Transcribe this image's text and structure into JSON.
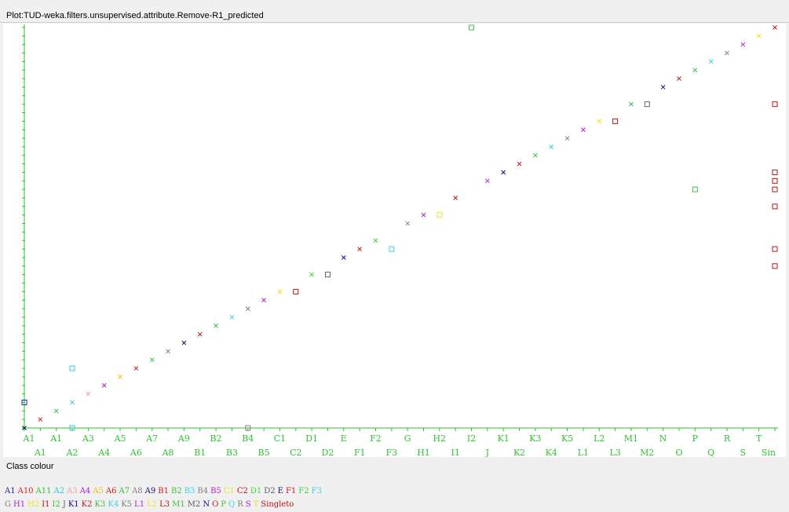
{
  "window": {
    "title": "Plot:TUD-weka.filters.unsupervised.attribute.Remove-R1_predicted"
  },
  "legend": {
    "title": "Class colour",
    "rows": [
      [
        {
          "label": "A1",
          "color": "#2020a0"
        },
        {
          "label": "A10",
          "color": "#e02020"
        },
        {
          "label": "A11",
          "color": "#30c030"
        },
        {
          "label": "A2",
          "color": "#30c8d8"
        },
        {
          "label": "A3",
          "color": "#f0a0a0"
        },
        {
          "label": "A4",
          "color": "#b020d0"
        },
        {
          "label": "A5",
          "color": "#e8c020"
        },
        {
          "label": "A6",
          "color": "#c02020"
        },
        {
          "label": "A7",
          "color": "#30c030"
        },
        {
          "label": "A8",
          "color": "#808080"
        },
        {
          "label": "A9",
          "color": "#101060"
        },
        {
          "label": "B1",
          "color": "#c02020"
        },
        {
          "label": "B2",
          "color": "#40c040"
        },
        {
          "label": "B3",
          "color": "#40d0e0"
        },
        {
          "label": "B4",
          "color": "#808080"
        },
        {
          "label": "B5",
          "color": "#b020d0"
        },
        {
          "label": "C1",
          "color": "#f0e020"
        },
        {
          "label": "C2",
          "color": "#c01010"
        },
        {
          "label": "D1",
          "color": "#40d040"
        },
        {
          "label": "D2",
          "color": "#606060"
        },
        {
          "label": "E",
          "color": "#101080"
        },
        {
          "label": "F1",
          "color": "#c02020"
        },
        {
          "label": "F2",
          "color": "#40d040"
        },
        {
          "label": "F3",
          "color": "#40d0e0"
        }
      ],
      [
        {
          "label": "G",
          "color": "#808080"
        },
        {
          "label": "H1",
          "color": "#b020d0"
        },
        {
          "label": "H2",
          "color": "#f0e020"
        },
        {
          "label": "I1",
          "color": "#c01010"
        },
        {
          "label": "I2",
          "color": "#40c040"
        },
        {
          "label": "J",
          "color": "#606060"
        },
        {
          "label": "K1",
          "color": "#101080"
        },
        {
          "label": "K2",
          "color": "#c02020"
        },
        {
          "label": "K3",
          "color": "#40c040"
        },
        {
          "label": "K4",
          "color": "#40d0e0"
        },
        {
          "label": "K5",
          "color": "#808080"
        },
        {
          "label": "L1",
          "color": "#b020d0"
        },
        {
          "label": "L2",
          "color": "#f0e020"
        },
        {
          "label": "L3",
          "color": "#c01010"
        },
        {
          "label": "M1",
          "color": "#40c040"
        },
        {
          "label": "M2",
          "color": "#606060"
        },
        {
          "label": "N",
          "color": "#101080"
        },
        {
          "label": "O",
          "color": "#c02020"
        },
        {
          "label": "P",
          "color": "#40c040"
        },
        {
          "label": "Q",
          "color": "#40d0e0"
        },
        {
          "label": "R",
          "color": "#808080"
        },
        {
          "label": "S",
          "color": "#b020d0"
        },
        {
          "label": "T",
          "color": "#f0e020"
        },
        {
          "label": "Singleto",
          "color": "#c01010"
        }
      ]
    ]
  },
  "chart_data": {
    "type": "scatter",
    "title": "",
    "xlabel": "",
    "ylabel": "",
    "axis_color": "#30c030",
    "x_ticks_row1": [
      "A1",
      "A1",
      "A3",
      "A5",
      "A7",
      "A9",
      "B2",
      "B4",
      "C1",
      "D1",
      "E",
      "F2",
      "G",
      "H2",
      "I2",
      "K1",
      "K3",
      "K5",
      "L2",
      "M1",
      "N",
      "P",
      "R",
      "T"
    ],
    "x_ticks_row2": [
      "A1",
      "A2",
      "A4",
      "A6",
      "A8",
      "B1",
      "B3",
      "B5",
      "C2",
      "D2",
      "F1",
      "F3",
      "H1",
      "I1",
      "J",
      "K2",
      "K4",
      "L1",
      "L3",
      "M2",
      "O",
      "Q",
      "S",
      "Sin"
    ],
    "y_ticks_count": 48,
    "xlim": [
      0,
      47
    ],
    "ylim": [
      0,
      47
    ],
    "series": [
      {
        "marker": "cross",
        "points": [
          {
            "x": 0,
            "y": 0,
            "color": "#101060"
          },
          {
            "x": 1,
            "y": 1,
            "color": "#e02020"
          },
          {
            "x": 2,
            "y": 2,
            "color": "#30c030"
          },
          {
            "x": 3,
            "y": 3,
            "color": "#30c8d8"
          },
          {
            "x": 4,
            "y": 4,
            "color": "#f0a0a0"
          },
          {
            "x": 5,
            "y": 5,
            "color": "#b020d0"
          },
          {
            "x": 6,
            "y": 6,
            "color": "#e8c020"
          },
          {
            "x": 7,
            "y": 7,
            "color": "#c02020"
          },
          {
            "x": 8,
            "y": 8,
            "color": "#30c030"
          },
          {
            "x": 9,
            "y": 9,
            "color": "#808080"
          },
          {
            "x": 10,
            "y": 10,
            "color": "#101060"
          },
          {
            "x": 11,
            "y": 11,
            "color": "#c02020"
          },
          {
            "x": 12,
            "y": 12,
            "color": "#40c040"
          },
          {
            "x": 13,
            "y": 13,
            "color": "#40d0e0"
          },
          {
            "x": 14,
            "y": 14,
            "color": "#808080"
          },
          {
            "x": 15,
            "y": 15,
            "color": "#b020d0"
          },
          {
            "x": 16,
            "y": 16,
            "color": "#f0e020"
          },
          {
            "x": 18,
            "y": 18,
            "color": "#40d040"
          },
          {
            "x": 20,
            "y": 20,
            "color": "#101080"
          },
          {
            "x": 21,
            "y": 21,
            "color": "#c02020"
          },
          {
            "x": 22,
            "y": 22,
            "color": "#40d040"
          },
          {
            "x": 24,
            "y": 24,
            "color": "#808080"
          },
          {
            "x": 25,
            "y": 25,
            "color": "#b020d0"
          },
          {
            "x": 27,
            "y": 27,
            "color": "#c01010"
          },
          {
            "x": 29,
            "y": 29,
            "color": "#b020d0"
          },
          {
            "x": 30,
            "y": 30,
            "color": "#101080"
          },
          {
            "x": 31,
            "y": 31,
            "color": "#c02020"
          },
          {
            "x": 32,
            "y": 32,
            "color": "#40c040"
          },
          {
            "x": 33,
            "y": 33,
            "color": "#40d0e0"
          },
          {
            "x": 34,
            "y": 34,
            "color": "#808080"
          },
          {
            "x": 35,
            "y": 35,
            "color": "#b020d0"
          },
          {
            "x": 36,
            "y": 36,
            "color": "#f0e020"
          },
          {
            "x": 38,
            "y": 38,
            "color": "#40c040"
          },
          {
            "x": 40,
            "y": 40,
            "color": "#101080"
          },
          {
            "x": 41,
            "y": 41,
            "color": "#c02020"
          },
          {
            "x": 42,
            "y": 42,
            "color": "#40c040"
          },
          {
            "x": 43,
            "y": 43,
            "color": "#40d0e0"
          },
          {
            "x": 44,
            "y": 44,
            "color": "#808080"
          },
          {
            "x": 45,
            "y": 45,
            "color": "#b020d0"
          },
          {
            "x": 46,
            "y": 46,
            "color": "#f0e020"
          },
          {
            "x": 47,
            "y": 47,
            "color": "#c01010"
          }
        ]
      },
      {
        "marker": "square",
        "points": [
          {
            "x": 0,
            "y": 3,
            "color": "#2020a0"
          },
          {
            "x": 3,
            "y": 7,
            "color": "#30c8d8"
          },
          {
            "x": 3,
            "y": 0,
            "color": "#30c8d8"
          },
          {
            "x": 14,
            "y": 0,
            "color": "#808080"
          },
          {
            "x": 17,
            "y": 16,
            "color": "#c01010"
          },
          {
            "x": 19,
            "y": 18,
            "color": "#606060"
          },
          {
            "x": 23,
            "y": 21,
            "color": "#40d0e0"
          },
          {
            "x": 26,
            "y": 25,
            "color": "#f0e020"
          },
          {
            "x": 28,
            "y": 47,
            "color": "#40c040"
          },
          {
            "x": 37,
            "y": 36,
            "color": "#c01010"
          },
          {
            "x": 39,
            "y": 38,
            "color": "#606060"
          },
          {
            "x": 42,
            "y": 28,
            "color": "#40c040"
          },
          {
            "x": 47,
            "y": 38,
            "color": "#c01010"
          },
          {
            "x": 47,
            "y": 30,
            "color": "#c01010"
          },
          {
            "x": 47,
            "y": 29,
            "color": "#c01010"
          },
          {
            "x": 47,
            "y": 28,
            "color": "#c01010"
          },
          {
            "x": 47,
            "y": 26,
            "color": "#c01010"
          },
          {
            "x": 47,
            "y": 21,
            "color": "#c01010"
          },
          {
            "x": 47,
            "y": 19,
            "color": "#c01010"
          }
        ]
      }
    ]
  }
}
